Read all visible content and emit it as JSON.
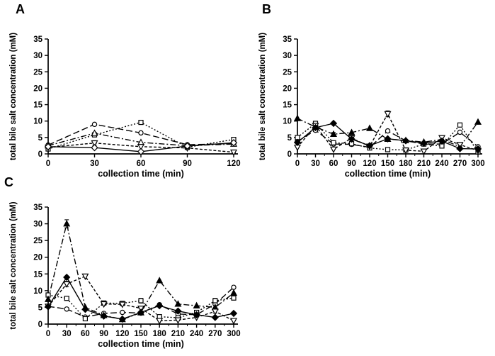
{
  "figure": {
    "background": "#ffffff",
    "ink": "#000000",
    "panels": [
      {
        "label": "A"
      },
      {
        "label": "B"
      },
      {
        "label": "C"
      }
    ]
  },
  "chart_data": [
    {
      "type": "line",
      "panel": "A",
      "title": "",
      "xlabel": "collection time (min)",
      "ylabel": "total bile salt concentration (mM)",
      "xlim": [
        0,
        120
      ],
      "ylim": [
        0,
        35
      ],
      "xticks": [
        0,
        30,
        60,
        90,
        120
      ],
      "yticks": [
        0,
        5,
        10,
        15,
        20,
        25,
        30,
        35
      ],
      "minor_xticks": false,
      "grid": false,
      "legend": "none",
      "x": [
        0,
        30,
        60,
        90,
        120
      ],
      "series": [
        {
          "name": "open-circle-long-dash",
          "marker": "circle",
          "filled": false,
          "dash": "9,4",
          "values": [
            2.7,
            9.0,
            6.4,
            2.8,
            3.1
          ],
          "errors": [
            0,
            0,
            0,
            0,
            0
          ]
        },
        {
          "name": "open-square-dotted",
          "marker": "square",
          "filled": false,
          "dash": "2,2.5",
          "values": [
            1.5,
            5.8,
            9.6,
            2.0,
            4.4
          ],
          "errors": [
            0,
            0,
            0,
            0,
            0
          ]
        },
        {
          "name": "triangle-dash-dot",
          "marker": "triangle-up",
          "filled": false,
          "dash": "8,3,2,3",
          "values": [
            2.5,
            6.3,
            3.5,
            2.5,
            3.0
          ],
          "errors": [
            0,
            0,
            0,
            0,
            0
          ]
        },
        {
          "name": "open-inverted-triangle-dash",
          "marker": "triangle-down",
          "filled": false,
          "dash": "4,2.5",
          "values": [
            2.0,
            3.3,
            2.2,
            1.8,
            0.5
          ],
          "errors": [
            0.4,
            0.7,
            0,
            0,
            0.3
          ]
        },
        {
          "name": "diamond-solid",
          "marker": "diamond",
          "filled": false,
          "dash": "",
          "values": [
            2.2,
            1.9,
            0.7,
            2.4,
            3.4
          ],
          "errors": [
            0,
            0,
            0,
            0,
            0
          ]
        }
      ]
    },
    {
      "type": "line",
      "panel": "B",
      "title": "",
      "xlabel": "collection time (min)",
      "ylabel": "total bile salt concentration (mM)",
      "xlim": [
        0,
        300
      ],
      "ylim": [
        0,
        35
      ],
      "xticks": [
        0,
        30,
        60,
        90,
        120,
        150,
        180,
        210,
        240,
        270,
        300
      ],
      "yticks": [
        0,
        5,
        10,
        15,
        20,
        25,
        30,
        35
      ],
      "minor_xticks": true,
      "grid": false,
      "legend": "none",
      "x": [
        0,
        30,
        60,
        90,
        120,
        150,
        180,
        210,
        240,
        270,
        300
      ],
      "series": [
        {
          "name": "open-circle-long-dash",
          "marker": "circle",
          "filled": false,
          "dash": "9,4",
          "values": [
            3.8,
            7.2,
            3.0,
            2.9,
            2.0,
            7.0,
            4.0,
            3.0,
            3.0,
            6.6,
            2.2
          ],
          "errors": [
            0,
            0,
            0,
            0,
            0,
            0,
            0,
            0,
            0,
            0,
            0
          ]
        },
        {
          "name": "open-square-dotted",
          "marker": "square",
          "filled": false,
          "dash": "2,2.5",
          "values": [
            5.0,
            9.3,
            3.4,
            3.1,
            1.8,
            1.3,
            1.2,
            3.0,
            2.4,
            8.8,
            0.6
          ],
          "errors": [
            0,
            0.4,
            0,
            0,
            0,
            0,
            0,
            0,
            0,
            0.4,
            0
          ]
        },
        {
          "name": "triangle-dash-dot",
          "marker": "triangle-up",
          "filled": true,
          "dash": "8,3,2,3",
          "values": [
            10.8,
            8.2,
            6.0,
            6.5,
            7.8,
            4.5,
            4.1,
            3.6,
            4.4,
            2.2,
            9.7
          ],
          "errors": [
            0,
            0,
            0.5,
            0,
            0,
            0,
            0,
            0,
            0,
            0,
            0
          ]
        },
        {
          "name": "open-inverted-triangle-dash",
          "marker": "triangle-down",
          "filled": false,
          "dash": "4,2.5",
          "values": [
            2.0,
            8.6,
            1.4,
            4.8,
            2.3,
            12.2,
            1.1,
            0.8,
            4.9,
            2.8,
            1.0
          ],
          "errors": [
            0,
            0,
            0,
            0.4,
            0,
            0.9,
            0,
            0,
            0.5,
            0,
            0
          ]
        },
        {
          "name": "diamond-solid",
          "marker": "diamond",
          "filled": true,
          "dash": "",
          "values": [
            3.5,
            8.0,
            9.3,
            4.5,
            2.5,
            4.6,
            4.0,
            3.3,
            3.9,
            1.6,
            1.5
          ],
          "errors": [
            0,
            0,
            0,
            0,
            0,
            0,
            0,
            0,
            0,
            0,
            0
          ]
        }
      ]
    },
    {
      "type": "line",
      "panel": "C",
      "title": "",
      "xlabel": "collection time (min)",
      "ylabel": "total bile salt concentration (mM)",
      "xlim": [
        0,
        300
      ],
      "ylim": [
        0,
        35
      ],
      "xticks": [
        0,
        30,
        60,
        90,
        120,
        150,
        180,
        210,
        240,
        270,
        300
      ],
      "yticks": [
        0,
        5,
        10,
        15,
        20,
        25,
        30,
        35
      ],
      "minor_xticks": true,
      "grid": false,
      "legend": "none",
      "x": [
        0,
        30,
        60,
        90,
        120,
        150,
        180,
        210,
        240,
        270,
        300
      ],
      "series": [
        {
          "name": "open-circle-long-dash",
          "marker": "circle",
          "filled": false,
          "dash": "9,4",
          "values": [
            5.3,
            4.5,
            2.1,
            3.2,
            3.5,
            3.3,
            5.8,
            3.0,
            2.8,
            6.0,
            11.0
          ],
          "errors": [
            0,
            0,
            0,
            0,
            0,
            0,
            0,
            0,
            0,
            0,
            0
          ]
        },
        {
          "name": "open-square-dotted",
          "marker": "square",
          "filled": false,
          "dash": "2,2.5",
          "values": [
            8.7,
            7.7,
            1.6,
            6.3,
            6.2,
            7.0,
            2.2,
            1.9,
            3.5,
            7.0,
            7.8
          ],
          "errors": [
            0,
            0,
            0,
            0,
            0,
            0.7,
            0,
            0,
            0,
            0.7,
            0
          ]
        },
        {
          "name": "triangle-dash-dot",
          "marker": "triangle-up",
          "filled": true,
          "dash": "8,3,2,3",
          "values": [
            7.4,
            30.0,
            5.0,
            2.6,
            1.4,
            3.4,
            13.0,
            6.0,
            5.5,
            5.0,
            9.3
          ],
          "errors": [
            0,
            1.2,
            0,
            0,
            0,
            0,
            0,
            0,
            0,
            0,
            0
          ]
        },
        {
          "name": "open-inverted-triangle-dash",
          "marker": "triangle-down",
          "filled": false,
          "dash": "4,2.5",
          "values": [
            5.3,
            12.0,
            14.3,
            6.0,
            5.9,
            4.7,
            1.0,
            1.2,
            2.0,
            3.8,
            1.0
          ],
          "errors": [
            0,
            0.8,
            0,
            0,
            0,
            0,
            0,
            0,
            0,
            0.5,
            0
          ]
        },
        {
          "name": "diamond-solid",
          "marker": "diamond",
          "filled": true,
          "dash": "",
          "values": [
            5.2,
            14.0,
            4.4,
            2.4,
            1.5,
            3.5,
            5.5,
            3.9,
            2.8,
            2.0,
            3.2
          ],
          "errors": [
            0,
            0,
            0,
            0,
            0,
            0,
            0,
            0,
            0,
            0,
            0
          ]
        }
      ]
    }
  ]
}
